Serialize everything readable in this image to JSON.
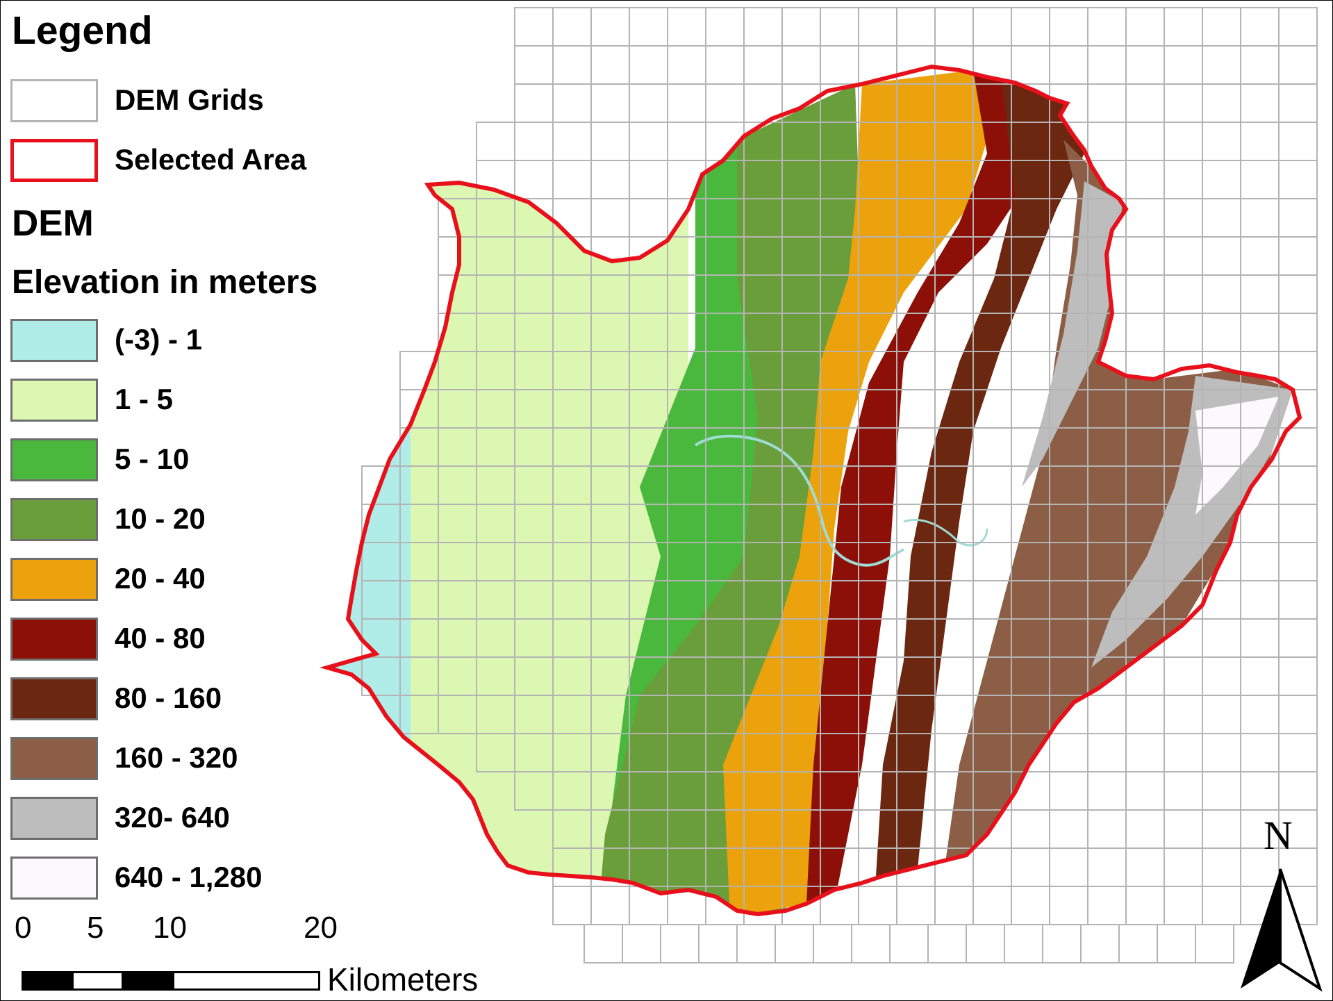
{
  "legend": {
    "title": "Legend",
    "dem_grids_label": "DEM Grids",
    "selected_area_label": "Selected Area",
    "dem_heading": "DEM",
    "elevation_heading": "Elevation in meters",
    "classes": [
      {
        "label": "(-3) - 1",
        "color": "#b0ece8"
      },
      {
        "label": "1 - 5",
        "color": "#dcf7b2"
      },
      {
        "label": "5 - 10",
        "color": "#4ab83c"
      },
      {
        "label": "10 - 20",
        "color": "#6a9e3a"
      },
      {
        "label": "20 - 40",
        "color": "#eba20c"
      },
      {
        "label": "40 - 80",
        "color": "#8c0f08"
      },
      {
        "label": "80 - 160",
        "color": "#6b2710"
      },
      {
        "label": "160 - 320",
        "color": "#8c5e46"
      },
      {
        "label": "320- 640",
        "color": "#bdbdbd"
      },
      {
        "label": "640 - 1,280",
        "color": "#fbf9fc"
      }
    ]
  },
  "scale_bar": {
    "ticks": [
      "0",
      "5",
      "10",
      "20"
    ],
    "units": "Kilometers"
  },
  "north_arrow": {
    "label": "N"
  },
  "colors": {
    "grid_lines": "#b4b4b4",
    "selected_area_outline": "#e8101a"
  }
}
